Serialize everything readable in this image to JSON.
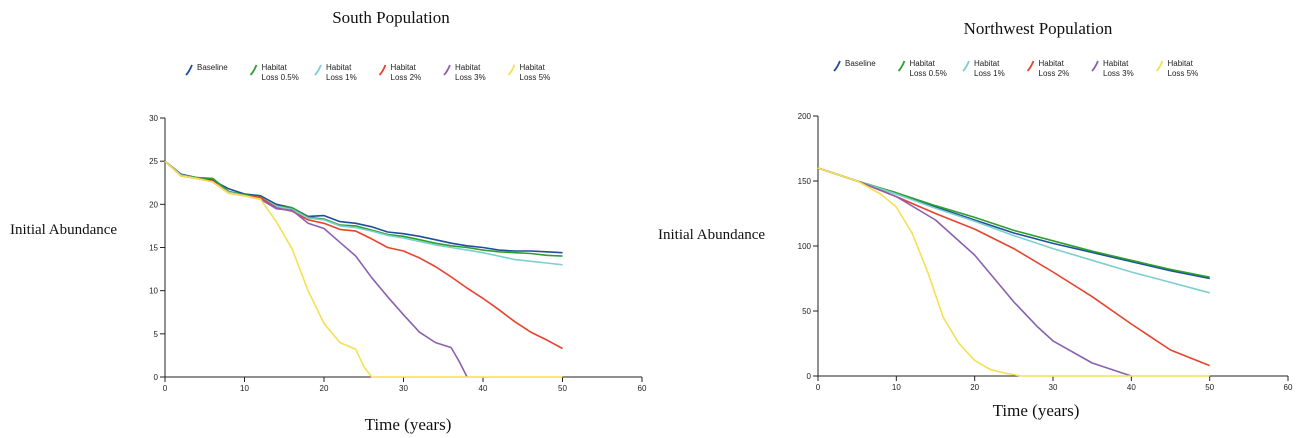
{
  "chart_data": [
    {
      "type": "line",
      "title": "South Population",
      "xlabel": "Time (years)",
      "ylabel": "Initial Abundance",
      "xlim": [
        0,
        60
      ],
      "ylim": [
        0,
        30
      ],
      "xticks": [
        0,
        10,
        20,
        30,
        40,
        50,
        60
      ],
      "yticks": [
        0,
        5,
        10,
        15,
        20,
        25,
        30
      ],
      "grid": false,
      "legend_position": "top",
      "series": [
        {
          "name": "Baseline",
          "label_lines": [
            "Baseline"
          ],
          "color": "#1f4e9a",
          "x": [
            0,
            2,
            4,
            6,
            8,
            10,
            12,
            14,
            16,
            18,
            20,
            22,
            24,
            26,
            28,
            30,
            32,
            34,
            36,
            38,
            40,
            42,
            44,
            46,
            48,
            50
          ],
          "y": [
            25,
            23.5,
            23.1,
            22.8,
            21.8,
            21.2,
            21.0,
            20.0,
            19.6,
            18.6,
            18.7,
            18.0,
            17.8,
            17.4,
            16.8,
            16.6,
            16.3,
            15.9,
            15.5,
            15.2,
            15.0,
            14.7,
            14.6,
            14.6,
            14.5,
            14.4
          ]
        },
        {
          "name": "Habitat Loss 0.5%",
          "label_lines": [
            "Habitat",
            "Loss 0.5%"
          ],
          "color": "#2ca02c",
          "x": [
            0,
            2,
            4,
            6,
            8,
            10,
            12,
            14,
            16,
            18,
            20,
            22,
            24,
            26,
            28,
            30,
            32,
            34,
            36,
            38,
            40,
            42,
            44,
            46,
            48,
            50
          ],
          "y": [
            25,
            23.4,
            23.1,
            23.0,
            21.5,
            21.1,
            20.8,
            19.8,
            19.6,
            18.5,
            18.3,
            17.6,
            17.5,
            17.0,
            16.5,
            16.3,
            15.9,
            15.5,
            15.2,
            15.0,
            14.7,
            14.5,
            14.4,
            14.3,
            14.1,
            14.0
          ]
        },
        {
          "name": "Habitat Loss 1%",
          "label_lines": [
            "Habitat",
            "Loss 1%"
          ],
          "color": "#7dcfcf",
          "x": [
            0,
            2,
            4,
            6,
            8,
            10,
            12,
            14,
            16,
            18,
            20,
            22,
            24,
            26,
            28,
            30,
            32,
            34,
            36,
            38,
            40,
            42,
            44,
            46,
            48,
            50
          ],
          "y": [
            25,
            23.4,
            23.0,
            22.6,
            21.4,
            21.0,
            20.8,
            19.8,
            19.4,
            18.4,
            18.2,
            17.5,
            17.3,
            16.9,
            16.4,
            16.1,
            15.7,
            15.3,
            15.0,
            14.7,
            14.4,
            14.0,
            13.6,
            13.4,
            13.2,
            13.0
          ]
        },
        {
          "name": "Habitat Loss 2%",
          "label_lines": [
            "Habitat",
            "Loss 2%"
          ],
          "color": "#e8432e",
          "x": [
            0,
            2,
            4,
            6,
            8,
            10,
            12,
            14,
            16,
            18,
            20,
            22,
            24,
            26,
            28,
            30,
            32,
            34,
            36,
            38,
            40,
            42,
            44,
            46,
            48,
            50
          ],
          "y": [
            25,
            23.3,
            23.0,
            22.7,
            21.3,
            21.0,
            20.8,
            19.6,
            19.2,
            18.2,
            17.8,
            17.1,
            16.9,
            16.0,
            15.0,
            14.6,
            13.8,
            12.8,
            11.6,
            10.3,
            9.1,
            7.8,
            6.4,
            5.2,
            4.3,
            3.3
          ]
        },
        {
          "name": "Habitat Loss 3%",
          "label_lines": [
            "Habitat",
            "Loss 3%"
          ],
          "color": "#8c5fb0",
          "x": [
            0,
            2,
            4,
            6,
            8,
            10,
            12,
            14,
            16,
            18,
            20,
            22,
            24,
            26,
            28,
            30,
            32,
            34,
            36,
            37,
            38
          ],
          "y": [
            25,
            23.3,
            23.0,
            22.6,
            21.3,
            21.0,
            20.6,
            19.5,
            19.3,
            17.8,
            17.2,
            15.6,
            14.0,
            11.5,
            9.3,
            7.2,
            5.2,
            4.0,
            3.4,
            1.8,
            0
          ]
        },
        {
          "name": "Habitat Loss 5%",
          "label_lines": [
            "Habitat",
            "Loss 5%"
          ],
          "color": "#f5e14f",
          "x": [
            0,
            2,
            4,
            6,
            8,
            10,
            12,
            14,
            16,
            18,
            20,
            22,
            24,
            25,
            26,
            30,
            40,
            50
          ],
          "y": [
            25,
            23.3,
            23.0,
            22.6,
            21.3,
            21.0,
            20.6,
            18.0,
            14.8,
            10.0,
            6.2,
            4.0,
            3.2,
            1.2,
            0,
            0,
            0,
            0
          ]
        }
      ]
    },
    {
      "type": "line",
      "title": "Northwest Population",
      "xlabel": "Time (years)",
      "ylabel": "Initial Abundance",
      "xlim": [
        0,
        60
      ],
      "ylim": [
        0,
        200
      ],
      "xticks": [
        0,
        10,
        20,
        30,
        40,
        50,
        60
      ],
      "yticks": [
        0,
        50,
        100,
        150,
        200
      ],
      "grid": false,
      "legend_position": "top",
      "series": [
        {
          "name": "Baseline",
          "label_lines": [
            "Baseline"
          ],
          "color": "#1f4e9a",
          "x": [
            0,
            5,
            10,
            15,
            20,
            25,
            30,
            35,
            40,
            45,
            50
          ],
          "y": [
            160,
            150,
            140,
            130,
            120,
            110,
            102,
            95,
            88,
            81,
            75
          ]
        },
        {
          "name": "Habitat Loss 0.5%",
          "label_lines": [
            "Habitat",
            "Loss 0.5%"
          ],
          "color": "#2ca02c",
          "x": [
            0,
            5,
            10,
            15,
            20,
            25,
            30,
            35,
            40,
            45,
            50
          ],
          "y": [
            160,
            150,
            141,
            131,
            122,
            112,
            104,
            96,
            89,
            82,
            76
          ]
        },
        {
          "name": "Habitat Loss 1%",
          "label_lines": [
            "Habitat",
            "Loss 1%"
          ],
          "color": "#7dcfcf",
          "x": [
            0,
            5,
            10,
            15,
            20,
            25,
            30,
            35,
            40,
            45,
            50
          ],
          "y": [
            160,
            150,
            140,
            129,
            119,
            108,
            98,
            89,
            80,
            72,
            64
          ]
        },
        {
          "name": "Habitat Loss 2%",
          "label_lines": [
            "Habitat",
            "Loss 2%"
          ],
          "color": "#e8432e",
          "x": [
            0,
            5,
            10,
            15,
            20,
            25,
            30,
            35,
            40,
            45,
            50
          ],
          "y": [
            160,
            150,
            138,
            125,
            113,
            98,
            80,
            61,
            40,
            20,
            8
          ]
        },
        {
          "name": "Habitat Loss 3%",
          "label_lines": [
            "Habitat",
            "Loss 3%"
          ],
          "color": "#8c5fb0",
          "x": [
            0,
            5,
            10,
            15,
            20,
            25,
            28,
            30,
            35,
            40
          ],
          "y": [
            160,
            150,
            138,
            120,
            93,
            57,
            38,
            27,
            10,
            0
          ]
        },
        {
          "name": "Habitat Loss 5%",
          "label_lines": [
            "Habitat",
            "Loss 5%"
          ],
          "color": "#f5e14f",
          "x": [
            0,
            5,
            8,
            10,
            12,
            14,
            16,
            18,
            20,
            22,
            24,
            26,
            30,
            40,
            50
          ],
          "y": [
            160,
            150,
            140,
            130,
            110,
            80,
            45,
            25,
            12,
            5,
            2,
            0,
            0,
            0,
            0
          ]
        }
      ]
    }
  ]
}
